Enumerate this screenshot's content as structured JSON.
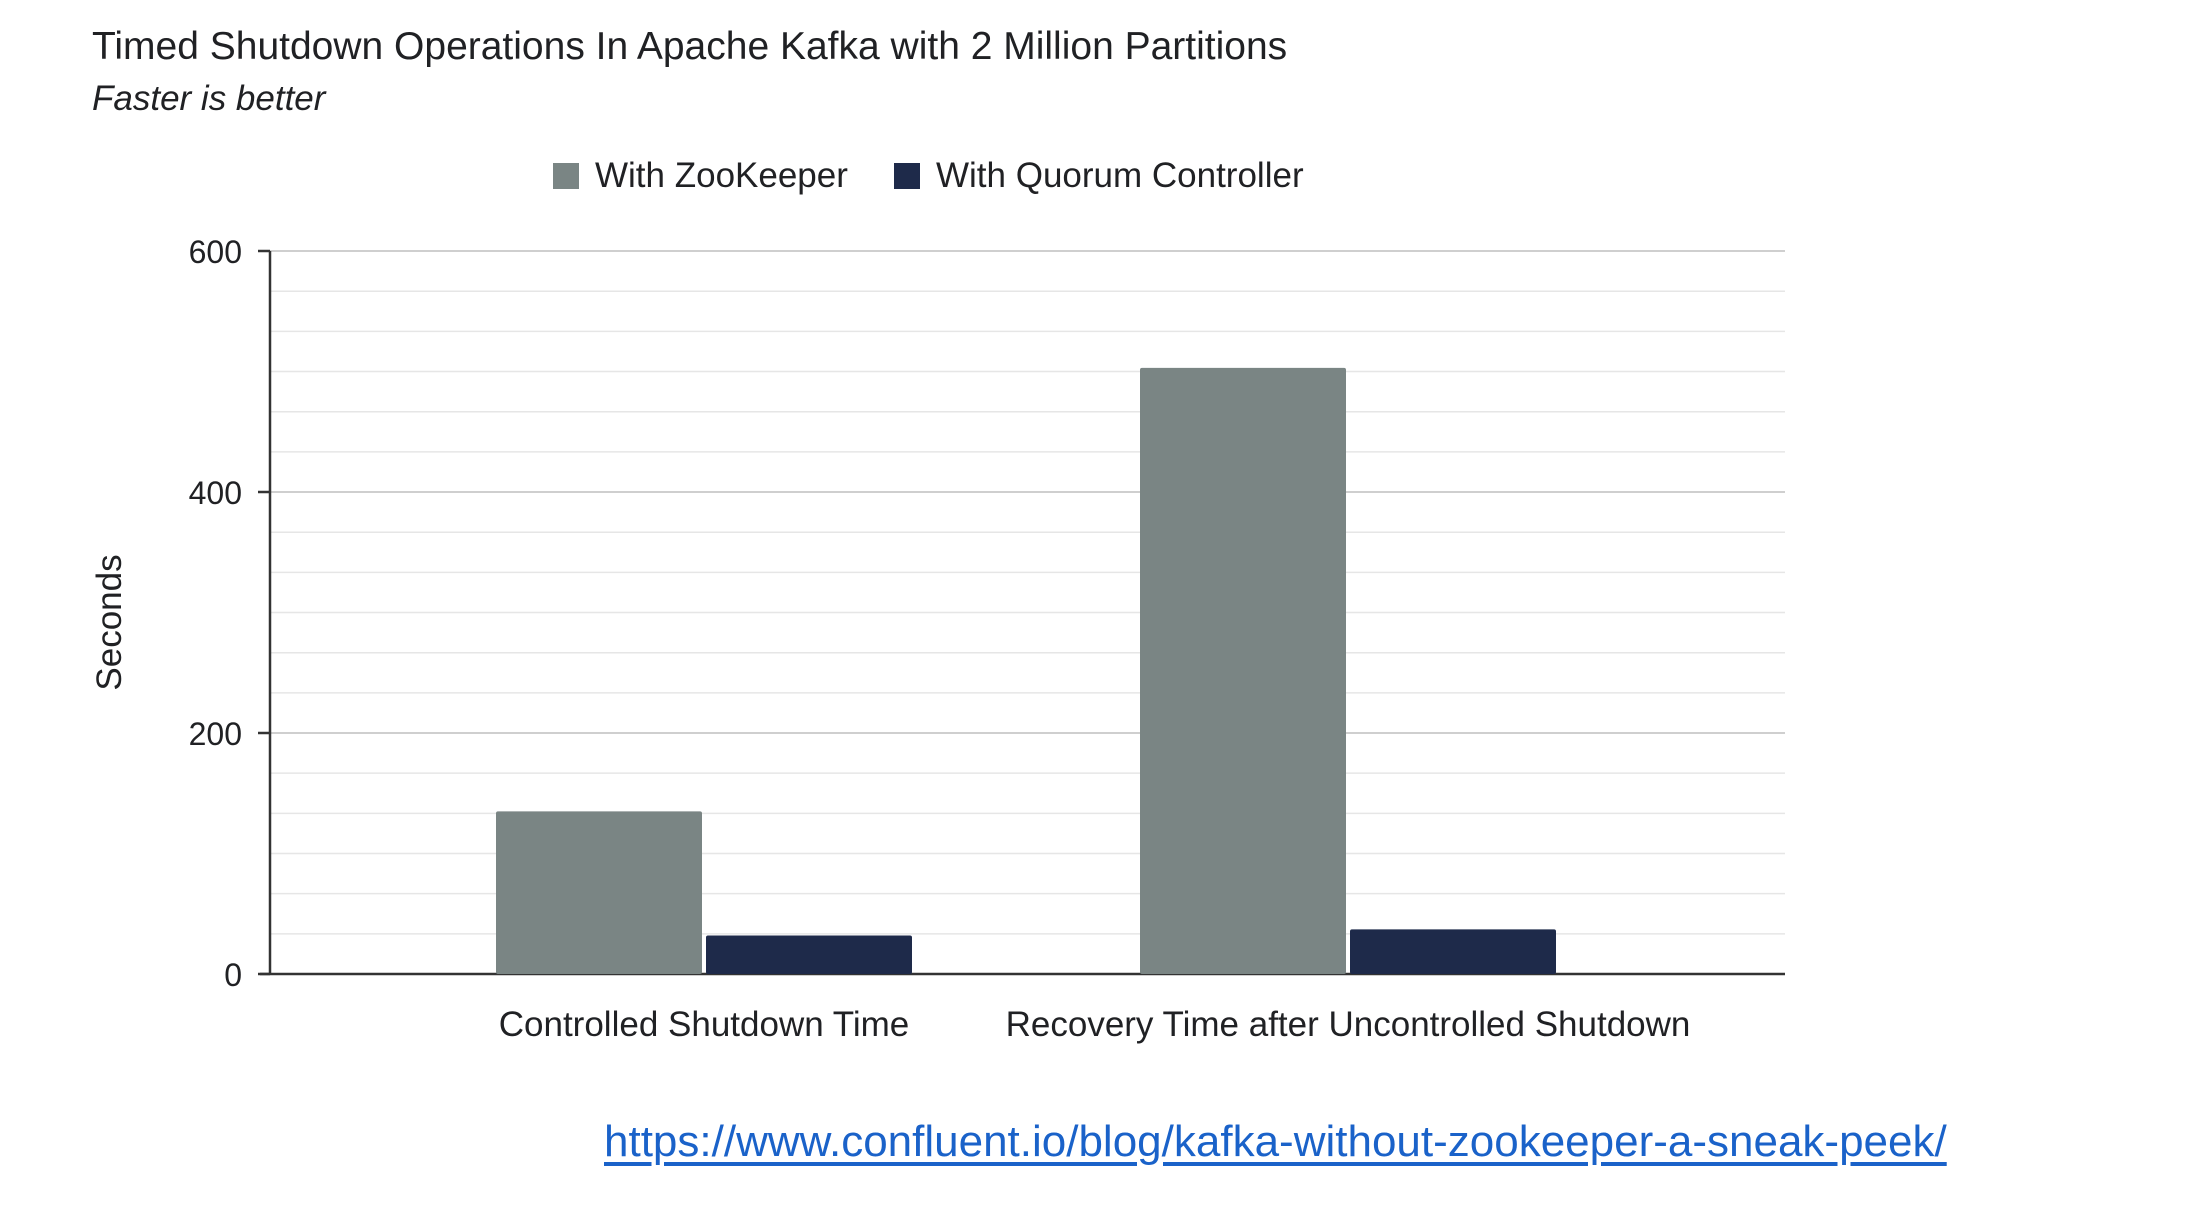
{
  "chart_data": {
    "type": "bar",
    "title": "Timed Shutdown Operations In Apache Kafka with 2 Million Partitions",
    "subtitle": "Faster is better",
    "xlabel": "",
    "ylabel": "Seconds",
    "categories": [
      "Controlled Shutdown Time",
      "Recovery Time after Uncontrolled Shutdown"
    ],
    "series": [
      {
        "name": "With ZooKeeper",
        "color": "#7a8584",
        "values": [
          135,
          503
        ]
      },
      {
        "name": "With Quorum Controller",
        "color": "#1e2a4a",
        "values": [
          32,
          37
        ]
      }
    ],
    "ylim": [
      0,
      600
    ],
    "yticks": [
      0,
      200,
      400,
      600
    ],
    "minor_grid_step": 33.33,
    "grid": true,
    "legend_position": "top-center"
  },
  "source_link": "https://www.confluent.io/blog/kafka-without-zookeeper-a-sneak-peek/"
}
